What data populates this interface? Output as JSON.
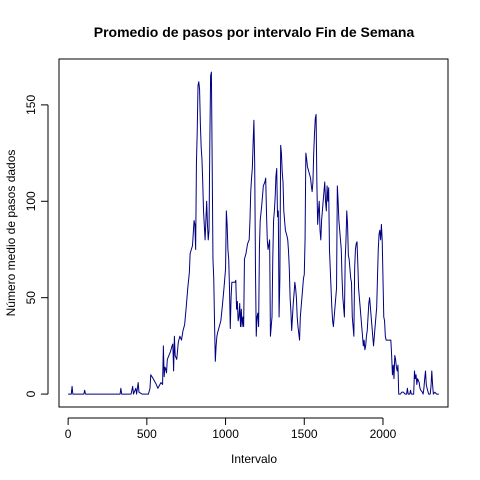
{
  "chart_data": {
    "type": "line",
    "title": "Promedio de pasos por intervalo Fin de Semana",
    "xlabel": "Intervalo",
    "ylabel": "Número medio de pasos dados",
    "xlim": [
      -58,
      2413
    ],
    "ylim": [
      -6.7,
      173.8
    ],
    "x_ticks": [
      0,
      500,
      1000,
      1500,
      2000
    ],
    "y_ticks": [
      0,
      50,
      100,
      150
    ],
    "grid": false,
    "legend": "none",
    "series": [
      {
        "color": "#000080",
        "points": [
          [
            0,
            0
          ],
          [
            20,
            0
          ],
          [
            25,
            4
          ],
          [
            30,
            0
          ],
          [
            60,
            0
          ],
          [
            100,
            0
          ],
          [
            105,
            2
          ],
          [
            110,
            0
          ],
          [
            150,
            0
          ],
          [
            200,
            0
          ],
          [
            300,
            0
          ],
          [
            330,
            0
          ],
          [
            335,
            3
          ],
          [
            340,
            0
          ],
          [
            360,
            0
          ],
          [
            400,
            0
          ],
          [
            410,
            4
          ],
          [
            415,
            0
          ],
          [
            430,
            3
          ],
          [
            435,
            0
          ],
          [
            445,
            6
          ],
          [
            450,
            1
          ],
          [
            470,
            0
          ],
          [
            510,
            0
          ],
          [
            520,
            3
          ],
          [
            525,
            10
          ],
          [
            540,
            8
          ],
          [
            560,
            5
          ],
          [
            570,
            3
          ],
          [
            590,
            6
          ],
          [
            600,
            5
          ],
          [
            605,
            25
          ],
          [
            610,
            9
          ],
          [
            615,
            14
          ],
          [
            620,
            13
          ],
          [
            625,
            11
          ],
          [
            630,
            18
          ],
          [
            640,
            20
          ],
          [
            650,
            22
          ],
          [
            660,
            25
          ],
          [
            665,
            26
          ],
          [
            670,
            12
          ],
          [
            675,
            30
          ],
          [
            680,
            20
          ],
          [
            690,
            18
          ],
          [
            700,
            27
          ],
          [
            710,
            30
          ],
          [
            720,
            28
          ],
          [
            730,
            33
          ],
          [
            740,
            36
          ],
          [
            750,
            45
          ],
          [
            760,
            55
          ],
          [
            770,
            63
          ],
          [
            775,
            73
          ],
          [
            790,
            77
          ],
          [
            800,
            90
          ],
          [
            805,
            88
          ],
          [
            810,
            75
          ],
          [
            815,
            120
          ],
          [
            820,
            136
          ],
          [
            825,
            160
          ],
          [
            830,
            162
          ],
          [
            835,
            158
          ],
          [
            840,
            140
          ],
          [
            845,
            128
          ],
          [
            850,
            122
          ],
          [
            855,
            110
          ],
          [
            860,
            95
          ],
          [
            870,
            80
          ],
          [
            880,
            100
          ],
          [
            885,
            88
          ],
          [
            890,
            80
          ],
          [
            895,
            85
          ],
          [
            900,
            130
          ],
          [
            905,
            165
          ],
          [
            910,
            167
          ],
          [
            915,
            120
          ],
          [
            920,
            70
          ],
          [
            925,
            60
          ],
          [
            930,
            37
          ],
          [
            935,
            17
          ],
          [
            940,
            25
          ],
          [
            945,
            30
          ],
          [
            950,
            32
          ],
          [
            960,
            35
          ],
          [
            970,
            38
          ],
          [
            980,
            46
          ],
          [
            990,
            55
          ],
          [
            1000,
            65
          ],
          [
            1005,
            95
          ],
          [
            1010,
            88
          ],
          [
            1015,
            75
          ],
          [
            1020,
            70
          ],
          [
            1025,
            55
          ],
          [
            1030,
            34
          ],
          [
            1035,
            50
          ],
          [
            1040,
            58
          ],
          [
            1050,
            58
          ],
          [
            1060,
            58
          ],
          [
            1065,
            59
          ],
          [
            1070,
            44
          ],
          [
            1075,
            48
          ],
          [
            1080,
            38
          ],
          [
            1085,
            40
          ],
          [
            1090,
            47
          ],
          [
            1095,
            35
          ],
          [
            1100,
            44
          ],
          [
            1105,
            35
          ],
          [
            1110,
            40
          ],
          [
            1115,
            35
          ],
          [
            1120,
            70
          ],
          [
            1130,
            73
          ],
          [
            1140,
            78
          ],
          [
            1150,
            80
          ],
          [
            1155,
            90
          ],
          [
            1160,
            105
          ],
          [
            1165,
            112
          ],
          [
            1170,
            117
          ],
          [
            1175,
            130
          ],
          [
            1180,
            142
          ],
          [
            1185,
            120
          ],
          [
            1190,
            65
          ],
          [
            1195,
            30
          ],
          [
            1200,
            40
          ],
          [
            1205,
            42
          ],
          [
            1210,
            35
          ],
          [
            1215,
            75
          ],
          [
            1220,
            90
          ],
          [
            1230,
            98
          ],
          [
            1240,
            108
          ],
          [
            1250,
            110
          ],
          [
            1255,
            112
          ],
          [
            1260,
            94
          ],
          [
            1265,
            80
          ],
          [
            1270,
            75
          ],
          [
            1280,
            80
          ],
          [
            1285,
            30
          ],
          [
            1290,
            35
          ],
          [
            1295,
            40
          ],
          [
            1300,
            70
          ],
          [
            1305,
            90
          ],
          [
            1310,
            95
          ],
          [
            1315,
            102
          ],
          [
            1320,
            113
          ],
          [
            1325,
            117
          ],
          [
            1330,
            92
          ],
          [
            1335,
            95
          ],
          [
            1340,
            40
          ],
          [
            1345,
            60
          ],
          [
            1350,
            129
          ],
          [
            1355,
            125
          ],
          [
            1360,
            115
          ],
          [
            1365,
            110
          ],
          [
            1370,
            95
          ],
          [
            1380,
            85
          ],
          [
            1390,
            82
          ],
          [
            1395,
            80
          ],
          [
            1400,
            74
          ],
          [
            1405,
            65
          ],
          [
            1410,
            50
          ],
          [
            1415,
            43
          ],
          [
            1420,
            33
          ],
          [
            1425,
            40
          ],
          [
            1430,
            47
          ],
          [
            1435,
            52
          ],
          [
            1440,
            58
          ],
          [
            1445,
            55
          ],
          [
            1450,
            50
          ],
          [
            1455,
            40
          ],
          [
            1460,
            35
          ],
          [
            1470,
            28
          ],
          [
            1475,
            40
          ],
          [
            1480,
            45
          ],
          [
            1485,
            50
          ],
          [
            1490,
            55
          ],
          [
            1495,
            60
          ],
          [
            1500,
            62
          ],
          [
            1505,
            80
          ],
          [
            1510,
            125
          ],
          [
            1515,
            122
          ],
          [
            1520,
            118
          ],
          [
            1530,
            115
          ],
          [
            1540,
            112
          ],
          [
            1545,
            108
          ],
          [
            1550,
            105
          ],
          [
            1555,
            110
          ],
          [
            1560,
            125
          ],
          [
            1565,
            135
          ],
          [
            1570,
            143
          ],
          [
            1575,
            145
          ],
          [
            1580,
            110
          ],
          [
            1585,
            88
          ],
          [
            1590,
            95
          ],
          [
            1595,
            100
          ],
          [
            1600,
            85
          ],
          [
            1605,
            80
          ],
          [
            1610,
            90
          ],
          [
            1615,
            95
          ],
          [
            1620,
            100
          ],
          [
            1625,
            105
          ],
          [
            1630,
            110
          ],
          [
            1635,
            100
          ],
          [
            1640,
            95
          ],
          [
            1645,
            108
          ],
          [
            1650,
            100
          ],
          [
            1655,
            107
          ],
          [
            1660,
            75
          ],
          [
            1665,
            65
          ],
          [
            1670,
            55
          ],
          [
            1675,
            45
          ],
          [
            1680,
            38
          ],
          [
            1685,
            35
          ],
          [
            1690,
            40
          ],
          [
            1695,
            45
          ],
          [
            1700,
            50
          ],
          [
            1705,
            55
          ],
          [
            1710,
            108
          ],
          [
            1715,
            100
          ],
          [
            1720,
            90
          ],
          [
            1725,
            85
          ],
          [
            1730,
            80
          ],
          [
            1735,
            75
          ],
          [
            1740,
            60
          ],
          [
            1745,
            50
          ],
          [
            1750,
            45
          ],
          [
            1755,
            40
          ],
          [
            1760,
            70
          ],
          [
            1765,
            80
          ],
          [
            1770,
            95
          ],
          [
            1775,
            88
          ],
          [
            1780,
            72
          ],
          [
            1785,
            70
          ],
          [
            1790,
            65
          ],
          [
            1795,
            60
          ],
          [
            1800,
            58
          ],
          [
            1805,
            40
          ],
          [
            1810,
            35
          ],
          [
            1815,
            30
          ],
          [
            1820,
            65
          ],
          [
            1825,
            75
          ],
          [
            1830,
            78
          ],
          [
            1835,
            79
          ],
          [
            1840,
            68
          ],
          [
            1845,
            55
          ],
          [
            1850,
            50
          ],
          [
            1855,
            45
          ],
          [
            1860,
            40
          ],
          [
            1865,
            35
          ],
          [
            1870,
            30
          ],
          [
            1875,
            25
          ],
          [
            1880,
            28
          ],
          [
            1885,
            23
          ],
          [
            1890,
            25
          ],
          [
            1895,
            30
          ],
          [
            1900,
            33
          ],
          [
            1905,
            40
          ],
          [
            1910,
            47
          ],
          [
            1915,
            50
          ],
          [
            1920,
            45
          ],
          [
            1925,
            40
          ],
          [
            1930,
            35
          ],
          [
            1935,
            30
          ],
          [
            1940,
            25
          ],
          [
            1945,
            30
          ],
          [
            1950,
            35
          ],
          [
            1955,
            40
          ],
          [
            1960,
            45
          ],
          [
            1965,
            60
          ],
          [
            1970,
            75
          ],
          [
            1975,
            83
          ],
          [
            1980,
            85
          ],
          [
            1985,
            80
          ],
          [
            1990,
            88
          ],
          [
            1995,
            80
          ],
          [
            2000,
            60
          ],
          [
            2005,
            40
          ],
          [
            2010,
            38
          ],
          [
            2015,
            30
          ],
          [
            2020,
            28
          ],
          [
            2030,
            28
          ],
          [
            2040,
            28
          ],
          [
            2050,
            28
          ],
          [
            2055,
            20
          ],
          [
            2060,
            10
          ],
          [
            2065,
            15
          ],
          [
            2070,
            8
          ],
          [
            2075,
            20
          ],
          [
            2080,
            18
          ],
          [
            2085,
            14
          ],
          [
            2090,
            12
          ],
          [
            2095,
            15
          ],
          [
            2100,
            0
          ],
          [
            2110,
            0
          ],
          [
            2120,
            1
          ],
          [
            2130,
            1
          ],
          [
            2140,
            0
          ],
          [
            2150,
            0
          ],
          [
            2155,
            3
          ],
          [
            2160,
            0
          ],
          [
            2170,
            0
          ],
          [
            2175,
            2
          ],
          [
            2180,
            0
          ],
          [
            2195,
            0
          ],
          [
            2200,
            12
          ],
          [
            2205,
            8
          ],
          [
            2210,
            10
          ],
          [
            2215,
            5
          ],
          [
            2220,
            8
          ],
          [
            2230,
            6
          ],
          [
            2235,
            3
          ],
          [
            2240,
            2
          ],
          [
            2250,
            1
          ],
          [
            2255,
            0
          ],
          [
            2260,
            3
          ],
          [
            2265,
            8
          ],
          [
            2270,
            12
          ],
          [
            2275,
            5
          ],
          [
            2280,
            3
          ],
          [
            2290,
            0
          ],
          [
            2300,
            0
          ],
          [
            2305,
            4
          ],
          [
            2310,
            12
          ],
          [
            2315,
            5
          ],
          [
            2320,
            0
          ],
          [
            2330,
            1
          ],
          [
            2340,
            0
          ],
          [
            2345,
            0
          ],
          [
            2350,
            0
          ],
          [
            2355,
            0
          ]
        ]
      }
    ]
  }
}
